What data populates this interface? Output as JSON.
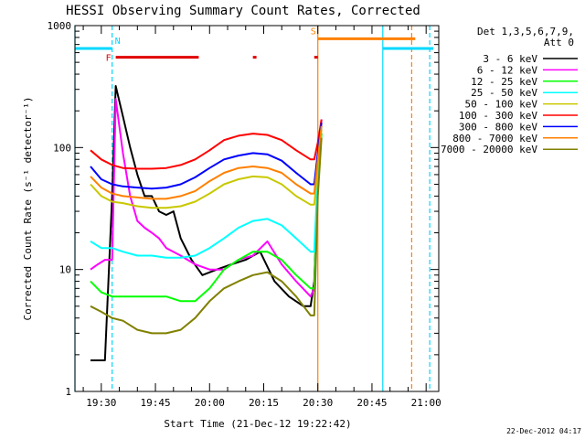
{
  "chart_data": {
    "type": "line",
    "title": "HESSI Observing Summary Count Rates, Corrected",
    "xlabel": "Start Time (21-Dec-12 19:22:42)",
    "ylabel": "Corrected Count Rate (s⁻¹ detector⁻¹)",
    "ylim": [
      1,
      1000
    ],
    "yscale": "log",
    "y_tick_labels": [
      "1",
      "10",
      "100",
      "1000"
    ],
    "x_ticks": [
      "19:30",
      "19:45",
      "20:00",
      "20:15",
      "20:30",
      "20:45",
      "21:00"
    ],
    "legend_title": [
      "Det 1,3,5,6,7,9,",
      "Att 0"
    ],
    "legend_position": "right",
    "timestamp": "22-Dec-2012 04:17",
    "series": [
      {
        "name": "3 - 6 keV",
        "color": "#000000",
        "x": [
          "19:27",
          "19:29",
          "19:31",
          "19:33",
          "19:34",
          "19:36",
          "19:38",
          "19:40",
          "19:42",
          "19:44",
          "19:46",
          "19:48",
          "19:50",
          "19:52",
          "19:55",
          "19:58",
          "20:02",
          "20:06",
          "20:10",
          "20:14",
          "20:18",
          "20:22",
          "20:26",
          "20:28",
          "20:29",
          "20:30",
          "20:31"
        ],
        "values": [
          1.8,
          1.8,
          1.8,
          40,
          320,
          180,
          100,
          60,
          40,
          40,
          30,
          28,
          30,
          18,
          12,
          9,
          10,
          11,
          12,
          14,
          8,
          6,
          5,
          5,
          8,
          50,
          130
        ]
      },
      {
        "name": "6 - 12 keV",
        "color": "#ff00ff",
        "x": [
          "19:27",
          "19:29",
          "19:31",
          "19:33",
          "19:34",
          "19:36",
          "19:38",
          "19:40",
          "19:42",
          "19:44",
          "19:46",
          "19:48",
          "19:52",
          "19:56",
          "20:00",
          "20:04",
          "20:08",
          "20:12",
          "20:16",
          "20:20",
          "20:24",
          "20:28",
          "20:29",
          "20:30",
          "20:31"
        ],
        "values": [
          10,
          11,
          12,
          12,
          250,
          90,
          40,
          25,
          22,
          20,
          18,
          15,
          13,
          11,
          10,
          10,
          12,
          13,
          17,
          11,
          8,
          6,
          7,
          70,
          170
        ]
      },
      {
        "name": "12 - 25 keV",
        "color": "#00ff00",
        "x": [
          "19:27",
          "19:30",
          "19:33",
          "19:36",
          "19:40",
          "19:44",
          "19:48",
          "19:52",
          "19:56",
          "20:00",
          "20:04",
          "20:08",
          "20:12",
          "20:16",
          "20:20",
          "20:24",
          "20:28",
          "20:29",
          "20:30",
          "20:31"
        ],
        "values": [
          8,
          6.5,
          6,
          6,
          6,
          6,
          6,
          5.5,
          5.5,
          7,
          10,
          12,
          14,
          14,
          12,
          9,
          7,
          7,
          50,
          130
        ]
      },
      {
        "name": "25 - 50 keV",
        "color": "#00ffff",
        "x": [
          "19:27",
          "19:30",
          "19:33",
          "19:36",
          "19:40",
          "19:44",
          "19:48",
          "19:52",
          "19:56",
          "20:00",
          "20:04",
          "20:08",
          "20:12",
          "20:16",
          "20:20",
          "20:24",
          "20:28",
          "20:29",
          "20:30",
          "20:31"
        ],
        "values": [
          17,
          15,
          15,
          14,
          13,
          13,
          12.5,
          12.5,
          13,
          15,
          18,
          22,
          25,
          26,
          23,
          18,
          14,
          14,
          60,
          150
        ]
      },
      {
        "name": "50 - 100 keV",
        "color": "#c8c800",
        "x": [
          "19:27",
          "19:30",
          "19:33",
          "19:36",
          "19:40",
          "19:44",
          "19:48",
          "19:52",
          "19:56",
          "20:00",
          "20:04",
          "20:08",
          "20:12",
          "20:16",
          "20:20",
          "20:24",
          "20:28",
          "20:29",
          "20:30",
          "20:31"
        ],
        "values": [
          50,
          40,
          36,
          35,
          33,
          32,
          32,
          33,
          36,
          42,
          50,
          55,
          58,
          57,
          50,
          40,
          34,
          34,
          70,
          140
        ]
      },
      {
        "name": "100 - 300 keV",
        "color": "#ff0000",
        "x": [
          "19:27",
          "19:30",
          "19:33",
          "19:36",
          "19:40",
          "19:44",
          "19:48",
          "19:52",
          "19:56",
          "20:00",
          "20:04",
          "20:08",
          "20:12",
          "20:16",
          "20:20",
          "20:24",
          "20:28",
          "20:29",
          "20:30",
          "20:31"
        ],
        "values": [
          95,
          80,
          72,
          68,
          67,
          67,
          68,
          72,
          80,
          95,
          115,
          125,
          130,
          127,
          115,
          95,
          80,
          80,
          110,
          170
        ]
      },
      {
        "name": "300 - 800 keV",
        "color": "#0000ff",
        "x": [
          "19:27",
          "19:30",
          "19:33",
          "19:36",
          "19:40",
          "19:44",
          "19:48",
          "19:52",
          "19:56",
          "20:00",
          "20:04",
          "20:08",
          "20:12",
          "20:16",
          "20:20",
          "20:24",
          "20:28",
          "20:29",
          "20:30",
          "20:31"
        ],
        "values": [
          70,
          55,
          50,
          48,
          47,
          46,
          47,
          50,
          57,
          68,
          80,
          86,
          90,
          88,
          78,
          62,
          50,
          50,
          90,
          160
        ]
      },
      {
        "name": "800 - 7000 keV",
        "color": "#ff8000",
        "x": [
          "19:27",
          "19:30",
          "19:33",
          "19:36",
          "19:40",
          "19:44",
          "19:48",
          "19:52",
          "19:56",
          "20:00",
          "20:04",
          "20:08",
          "20:12",
          "20:16",
          "20:20",
          "20:24",
          "20:28",
          "20:29",
          "20:30",
          "20:31"
        ],
        "values": [
          58,
          47,
          42,
          40,
          39,
          38,
          38,
          40,
          44,
          53,
          62,
          68,
          70,
          68,
          62,
          50,
          42,
          42,
          80,
          150
        ]
      },
      {
        "name": "7000 - 20000 keV",
        "color": "#808000",
        "x": [
          "19:27",
          "19:30",
          "19:33",
          "19:36",
          "19:40",
          "19:44",
          "19:48",
          "19:52",
          "19:56",
          "20:00",
          "20:04",
          "20:08",
          "20:12",
          "20:16",
          "20:20",
          "20:24",
          "20:28",
          "20:29",
          "20:30",
          "20:31"
        ],
        "values": [
          5,
          4.5,
          4,
          3.8,
          3.2,
          3.0,
          3.0,
          3.2,
          4.0,
          5.5,
          7.0,
          8.0,
          9.0,
          9.5,
          8.0,
          6.0,
          4.2,
          4.2,
          40,
          120
        ]
      }
    ],
    "flag_bars": [
      {
        "label": "F",
        "color": "#e00000",
        "segments": [
          [
            "19:34",
            "19:57"
          ],
          [
            "20:12",
            "20:13"
          ],
          [
            "20:29",
            "20:30"
          ]
        ],
        "y": 550
      },
      {
        "label": "N",
        "color": "#00d8ff",
        "segments": [
          [
            "19:22",
            "19:33"
          ]
        ],
        "y": 650
      },
      {
        "label": "S",
        "color": "#ff8000",
        "segments": [
          [
            "20:30",
            "20:57"
          ]
        ],
        "y": 780
      },
      {
        "label": "",
        "color": "#00d8ff",
        "segments": [
          [
            "20:48",
            "21:02"
          ]
        ],
        "y": 650
      }
    ],
    "vertical_lines": [
      {
        "x": "19:22",
        "color": "#00d8ff",
        "style": "solid"
      },
      {
        "x": "19:33",
        "color": "#00d8ff",
        "style": "dashed"
      },
      {
        "x": "20:30",
        "color": "#ff8000",
        "style": "solid"
      },
      {
        "x": "20:48",
        "color": "#00d8ff",
        "style": "solid"
      },
      {
        "x": "20:56",
        "color": "#ff8000",
        "style": "dashed"
      },
      {
        "x": "21:01",
        "color": "#00d8ff",
        "style": "dashed"
      }
    ]
  }
}
